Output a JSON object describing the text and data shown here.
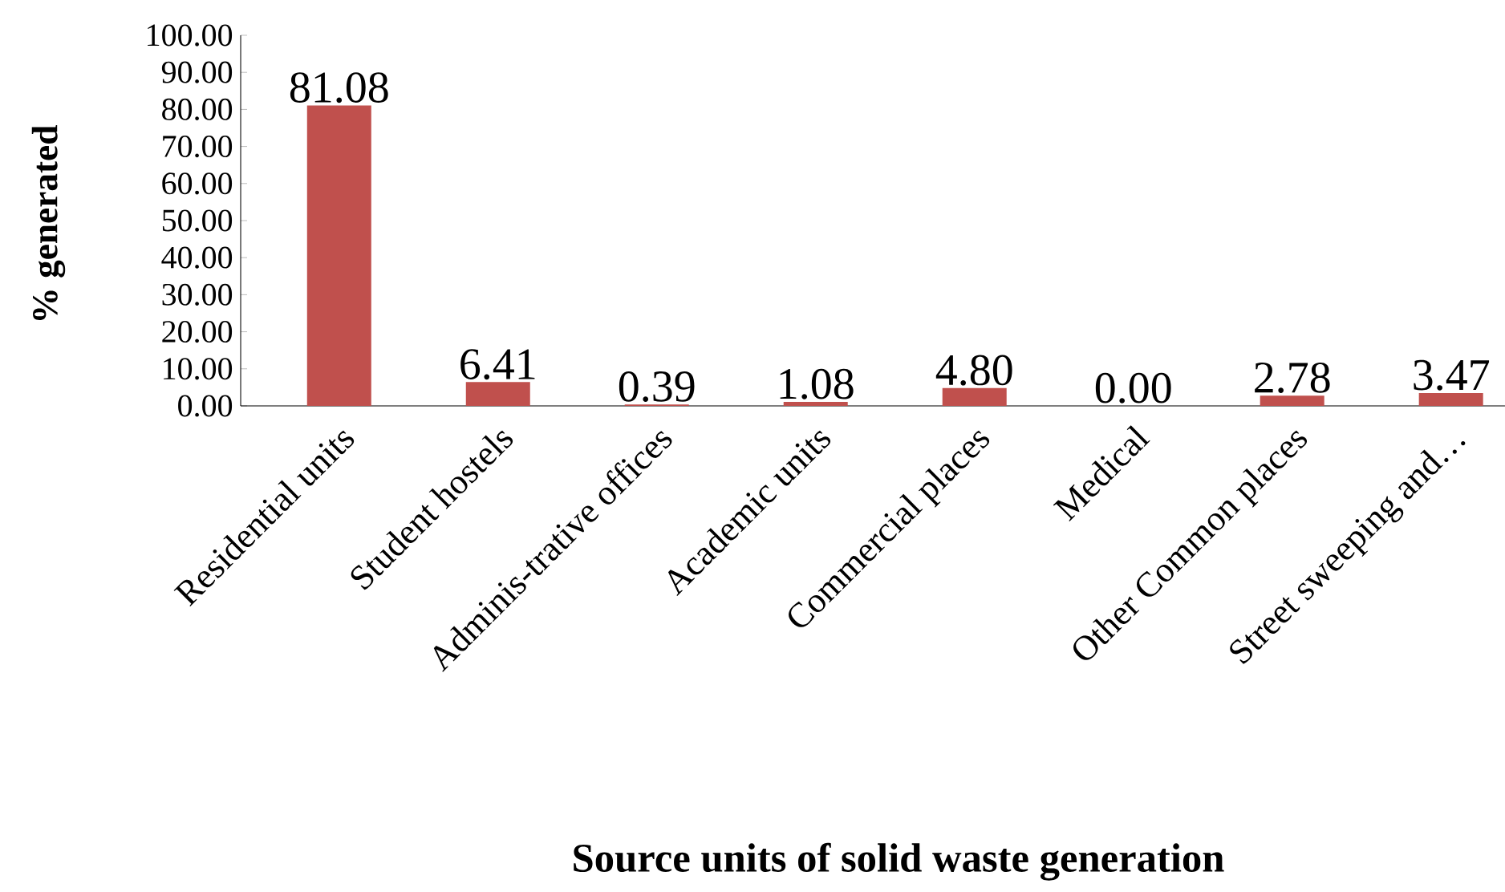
{
  "chart_data": {
    "type": "bar",
    "xlabel": "Source units of solid waste generation",
    "ylabel": "% generated",
    "categories": [
      "Residential units",
      "Student hostels",
      "Adminis-trative offices",
      "Academic units",
      "Commercial places",
      "Medical",
      "Other Common places",
      "Street sweeping and…"
    ],
    "values": [
      81.08,
      6.41,
      0.39,
      1.08,
      4.8,
      0.0,
      2.78,
      3.47
    ],
    "value_labels": [
      "81.08",
      "6.41",
      "0.39",
      "1.08",
      "4.80",
      "0.00",
      "2.78",
      "3.47"
    ],
    "color": "#c0504d",
    "ylim": [
      0,
      100
    ],
    "yticks": [
      {
        "value": 0,
        "label": "0.00"
      },
      {
        "value": 10,
        "label": "10.00"
      },
      {
        "value": 20,
        "label": "20.00"
      },
      {
        "value": 30,
        "label": "30.00"
      },
      {
        "value": 40,
        "label": "40.00"
      },
      {
        "value": 50,
        "label": "50.00"
      },
      {
        "value": 60,
        "label": "60.00"
      },
      {
        "value": 70,
        "label": "70.00"
      },
      {
        "value": 80,
        "label": "80.00"
      },
      {
        "value": 90,
        "label": "90.00"
      },
      {
        "value": 100,
        "label": "100.00"
      }
    ],
    "grid": false
  }
}
